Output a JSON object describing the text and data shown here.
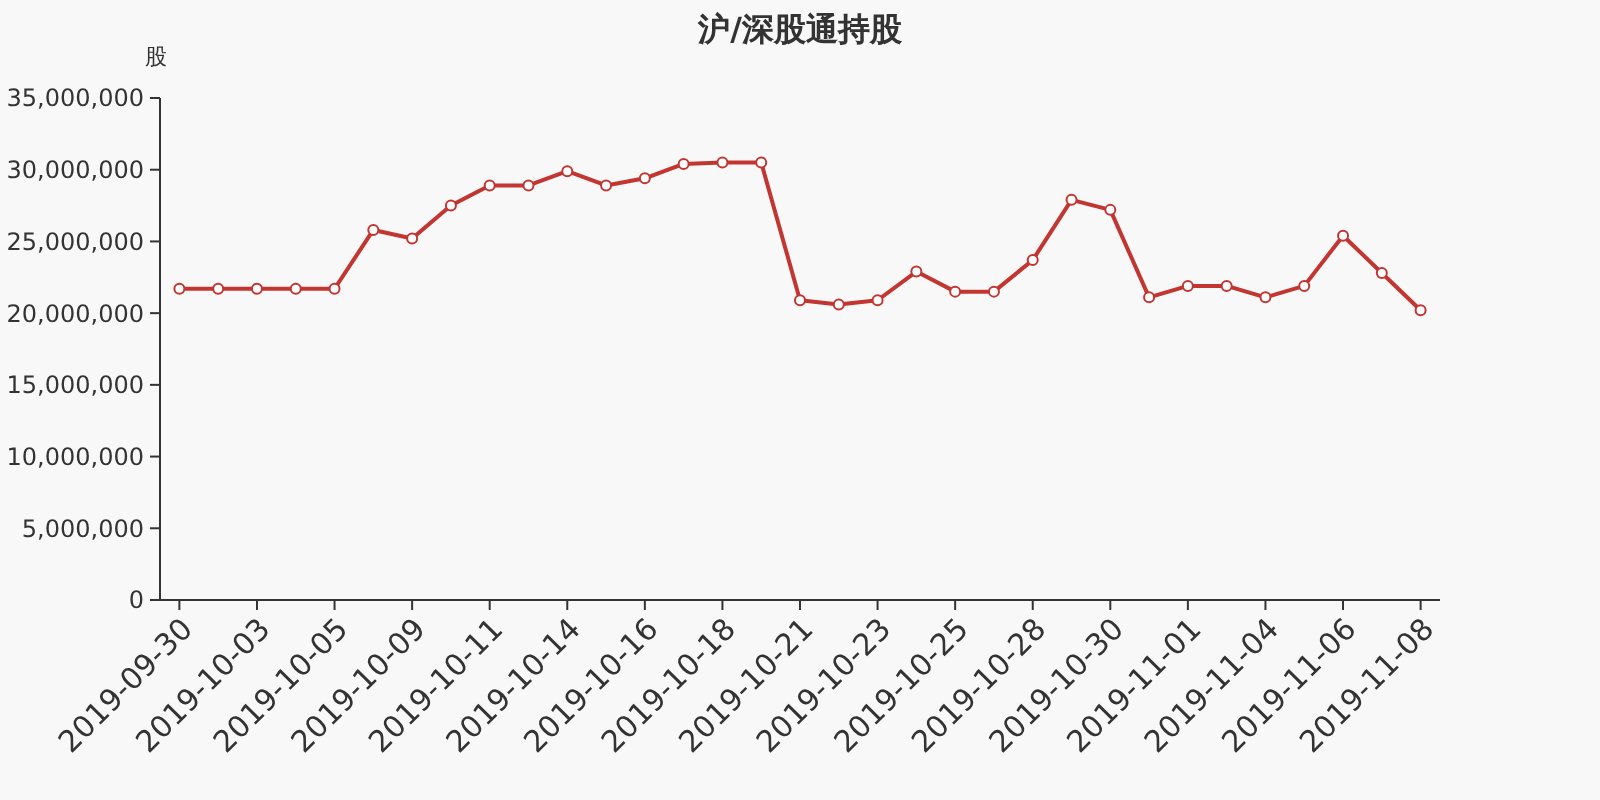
{
  "chart_data": {
    "type": "line",
    "title": "沪/深股通持股",
    "ylabel": "股",
    "categories": [
      "2019-09-30",
      null,
      "2019-10-03",
      null,
      "2019-10-05",
      null,
      "2019-10-09",
      null,
      "2019-10-11",
      null,
      "2019-10-14",
      null,
      "2019-10-16",
      null,
      "2019-10-18",
      null,
      "2019-10-21",
      null,
      "2019-10-23",
      null,
      "2019-10-25",
      null,
      "2019-10-28",
      null,
      "2019-10-30",
      null,
      "2019-11-01",
      null,
      "2019-11-04",
      null,
      "2019-11-06",
      null,
      "2019-11-08"
    ],
    "series": [
      {
        "color": "#c23531",
        "values": [
          21700000,
          21700000,
          21700000,
          21700000,
          21700000,
          25800000,
          25200000,
          27500000,
          28900000,
          28900000,
          29900000,
          28900000,
          29400000,
          30400000,
          30500000,
          30500000,
          20900000,
          20600000,
          20900000,
          22900000,
          21500000,
          21500000,
          23700000,
          27900000,
          27200000,
          21100000,
          21900000,
          21900000,
          21100000,
          21900000,
          25400000,
          22800000,
          20200000
        ]
      }
    ],
    "ylim": [
      0,
      35000000
    ],
    "yticks": [
      {
        "value": 0,
        "label": "0"
      },
      {
        "value": 5000000,
        "label": "5,000,000"
      },
      {
        "value": 10000000,
        "label": "10,000,000"
      },
      {
        "value": 15000000,
        "label": "15,000,000"
      },
      {
        "value": 20000000,
        "label": "20,000,000"
      },
      {
        "value": 25000000,
        "label": "25,000,000"
      },
      {
        "value": 30000000,
        "label": "30,000,000"
      },
      {
        "value": 35000000,
        "label": "35,000,000"
      }
    ],
    "marker": "circle",
    "grid": false
  }
}
